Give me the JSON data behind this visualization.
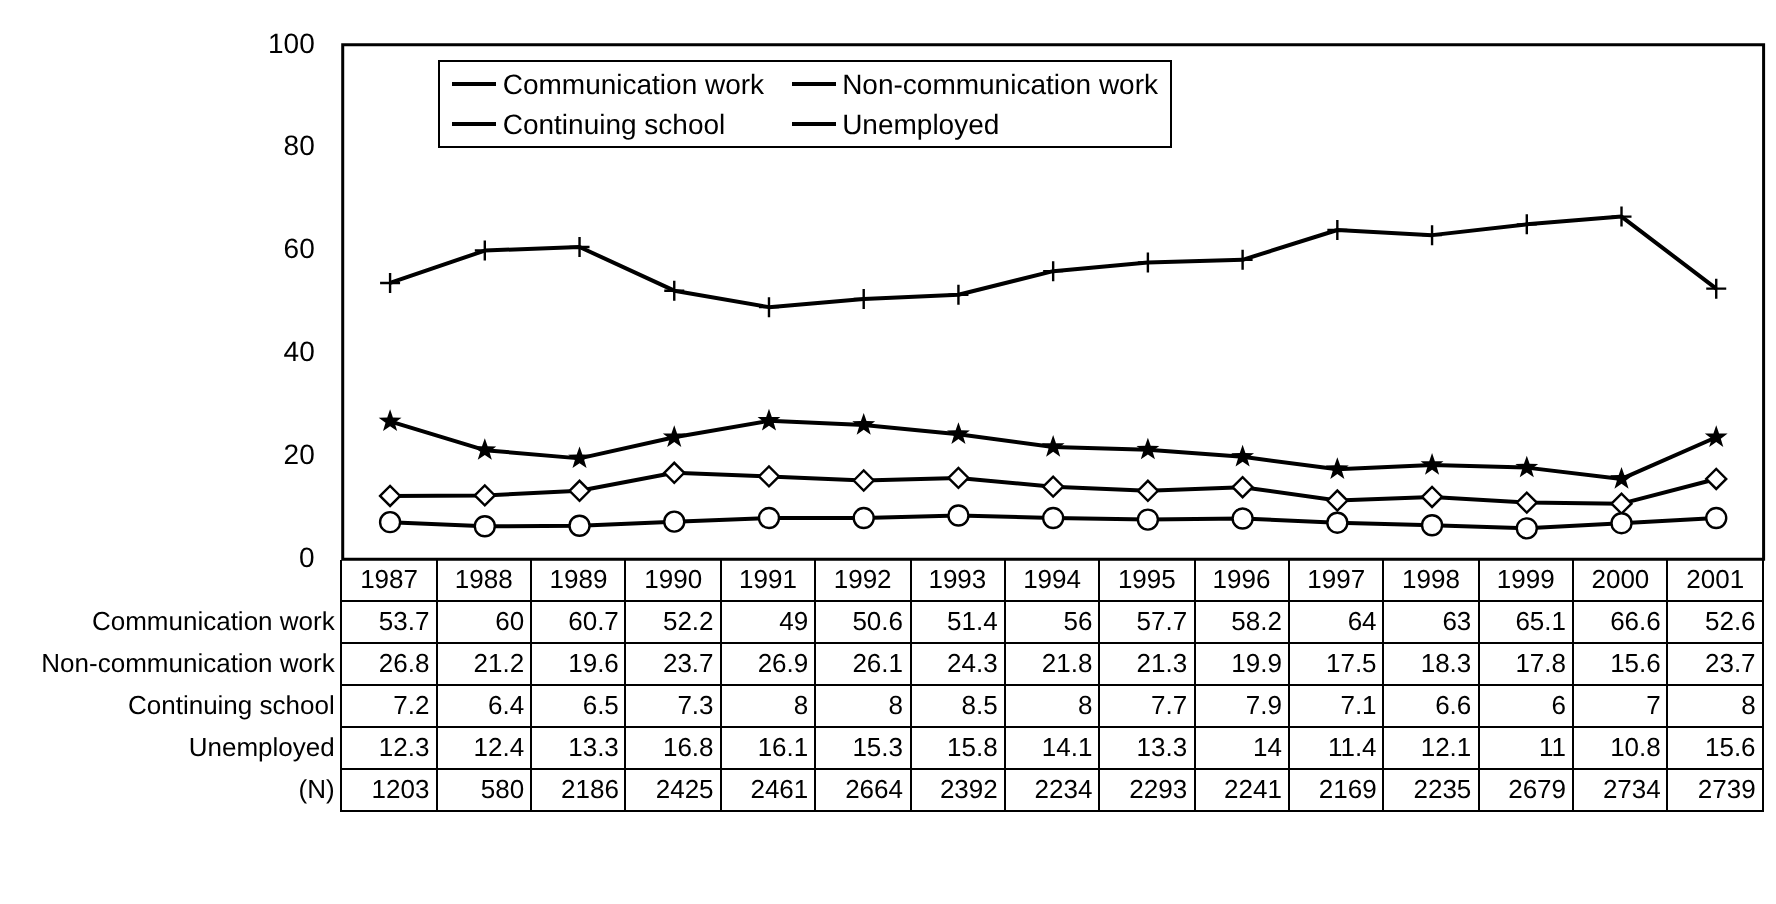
{
  "chart_data": {
    "type": "line",
    "categories": [
      "1987",
      "1988",
      "1989",
      "1990",
      "1991",
      "1992",
      "1993",
      "1994",
      "1995",
      "1996",
      "1997",
      "1998",
      "1999",
      "2000",
      "2001"
    ],
    "series": [
      {
        "name": "Communication work",
        "color": "#000000",
        "marker": "cross",
        "values": [
          53.7,
          60,
          60.7,
          52.2,
          49,
          50.6,
          51.4,
          56,
          57.7,
          58.2,
          64,
          63,
          65.1,
          66.6,
          52.6
        ]
      },
      {
        "name": "Non-communication work",
        "color": "#000000",
        "marker": "star",
        "values": [
          26.8,
          21.2,
          19.6,
          23.7,
          26.9,
          26.1,
          24.3,
          21.8,
          21.3,
          19.9,
          17.5,
          18.3,
          17.8,
          15.6,
          23.7
        ]
      },
      {
        "name": "Continuing school",
        "color": "#000000",
        "marker": "circle",
        "values": [
          7.2,
          6.4,
          6.5,
          7.3,
          8,
          8,
          8.5,
          8,
          7.7,
          7.9,
          7.1,
          6.6,
          6,
          7,
          8
        ]
      },
      {
        "name": "Unemployed",
        "color": "#000000",
        "marker": "diamond",
        "values": [
          12.3,
          12.4,
          13.3,
          16.8,
          16.1,
          15.3,
          15.8,
          14.1,
          13.3,
          14,
          11.4,
          12.1,
          11,
          10.8,
          15.6
        ]
      }
    ],
    "ylim": [
      0,
      100
    ],
    "yticks": [
      0,
      20,
      40,
      60,
      80,
      100
    ],
    "grid": false,
    "legend": "top",
    "data_labels": true,
    "annotations": [
      "(N)",
      "1203",
      "580",
      "2186",
      "2425",
      "2461",
      "2664",
      "2392",
      "2234",
      "2293",
      "2241",
      "2169",
      "2235",
      "2679",
      "2734",
      "2739"
    ]
  }
}
